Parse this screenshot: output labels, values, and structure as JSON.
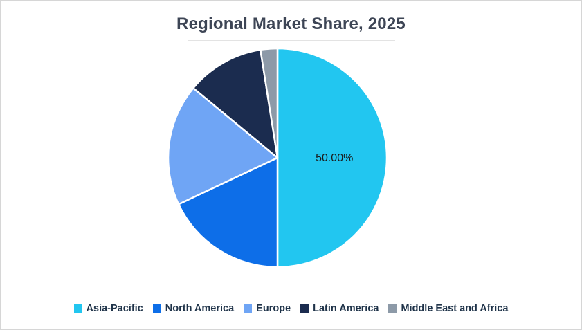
{
  "chart_data": {
    "type": "pie",
    "title": "Regional Market Share, 2025",
    "categories": [
      "Asia-Pacific",
      "North America",
      "Europe",
      "Latin America",
      "Middle East and Africa"
    ],
    "values": [
      50,
      18,
      18,
      11.5,
      2.5
    ],
    "colors": [
      "#22c6f0",
      "#0d6ee8",
      "#6fa5f5",
      "#1b2c4f",
      "#8d9aa8"
    ],
    "data_labels": [
      {
        "index": 0,
        "text": "50.00%"
      }
    ],
    "start_angle_deg": -90,
    "direction": "clockwise",
    "legend_position": "bottom"
  }
}
